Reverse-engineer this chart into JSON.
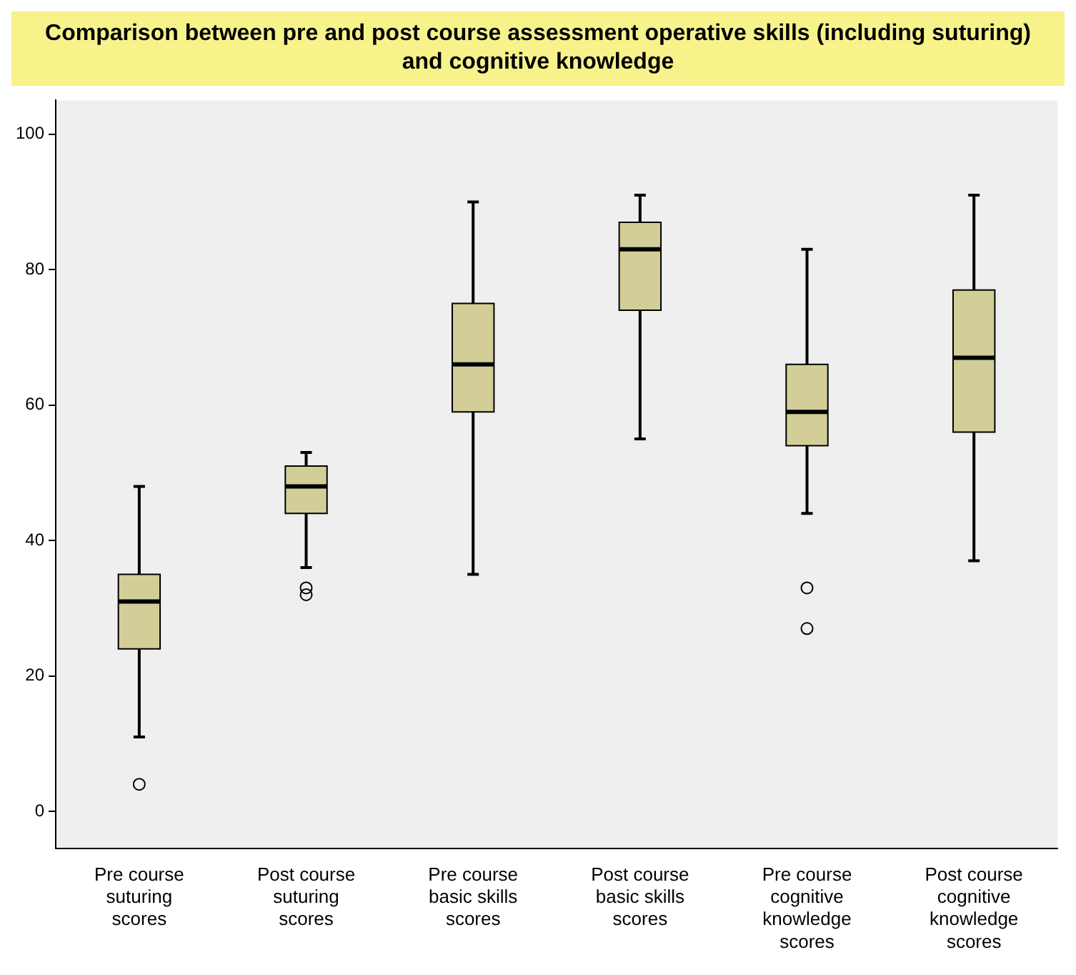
{
  "chart_data": {
    "type": "box",
    "title": "Comparison between pre and post course assessment operative skills (including suturing) and cognitive knowledge",
    "categories": [
      "Pre course suturing scores",
      "Post course suturing scores",
      "Pre course basic skills scores",
      "Post course basic skills scores",
      "Pre course cognitive knowledge scores",
      "Post course cognitive knowledge scores"
    ],
    "boxes": [
      {
        "low": 11,
        "q1": 24,
        "median": 31,
        "q3": 35,
        "high": 48,
        "outliers": [
          4
        ]
      },
      {
        "low": 36,
        "q1": 44,
        "median": 48,
        "q3": 51,
        "high": 53,
        "outliers": [
          33,
          32
        ]
      },
      {
        "low": 35,
        "q1": 59,
        "median": 66,
        "q3": 75,
        "high": 90
      },
      {
        "low": 55,
        "q1": 74,
        "median": 83,
        "q3": 87,
        "high": 91
      },
      {
        "low": 44,
        "q1": 54,
        "median": 59,
        "q3": 66,
        "high": 83,
        "outliers": [
          33,
          27
        ]
      },
      {
        "low": 37,
        "q1": 56,
        "median": 67,
        "q3": 77,
        "high": 91
      }
    ],
    "color": "#d3ce97",
    "ylim": [
      -5.5,
      105
    ],
    "yticks": [
      0,
      20,
      40,
      60,
      80,
      100
    ],
    "grid": false,
    "legend": false
  }
}
